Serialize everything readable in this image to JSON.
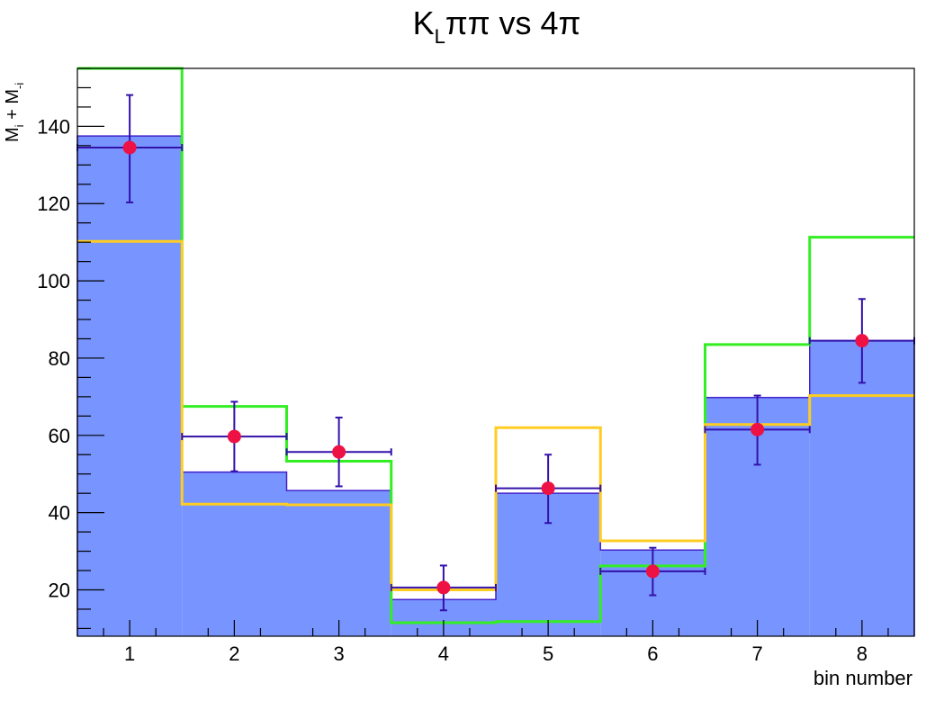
{
  "chart_data": {
    "type": "bar",
    "title_main": "K",
    "title_sub": "L",
    "title_rest": "ππ vs 4π",
    "xlabel": "bin number",
    "ylabel_parts": [
      "M",
      "i",
      " + M",
      "-i"
    ],
    "categories": [
      "1",
      "2",
      "3",
      "4",
      "5",
      "6",
      "7",
      "8"
    ],
    "x_tick_labels": [
      "1",
      "2",
      "3",
      "4",
      "5",
      "6",
      "7",
      "8"
    ],
    "y_tick_labels": [
      "20",
      "40",
      "60",
      "80",
      "100",
      "120",
      "140"
    ],
    "ylim": [
      8,
      155
    ],
    "grid": false,
    "series": [
      {
        "style": "filled-histogram",
        "color": "#7794ff",
        "edge_color": "#4422cc",
        "values": [
          137.5,
          50.5,
          45.7,
          17.5,
          45.0,
          30.3,
          69.8,
          84.5
        ]
      },
      {
        "style": "step-line",
        "color": "#33ee22",
        "values": [
          155,
          67.5,
          53.3,
          11.5,
          11.8,
          26.2,
          83.5,
          111.3
        ]
      },
      {
        "style": "step-line",
        "color": "#ffcc22",
        "values": [
          110.2,
          42.2,
          42.0,
          20.0,
          62.0,
          32.7,
          62.8,
          70.3
        ]
      },
      {
        "style": "points-with-errors",
        "color": "#ee1144",
        "error_color": "#3311aa",
        "values": [
          134.5,
          59.7,
          55.7,
          20.6,
          46.3,
          24.8,
          61.5,
          84.5
        ],
        "error_low": [
          14.2,
          9.0,
          8.9,
          5.9,
          9.0,
          6.2,
          9.1,
          10.9
        ],
        "error_high": [
          13.6,
          9.0,
          8.9,
          5.7,
          8.7,
          6.1,
          8.8,
          10.8
        ]
      }
    ]
  }
}
